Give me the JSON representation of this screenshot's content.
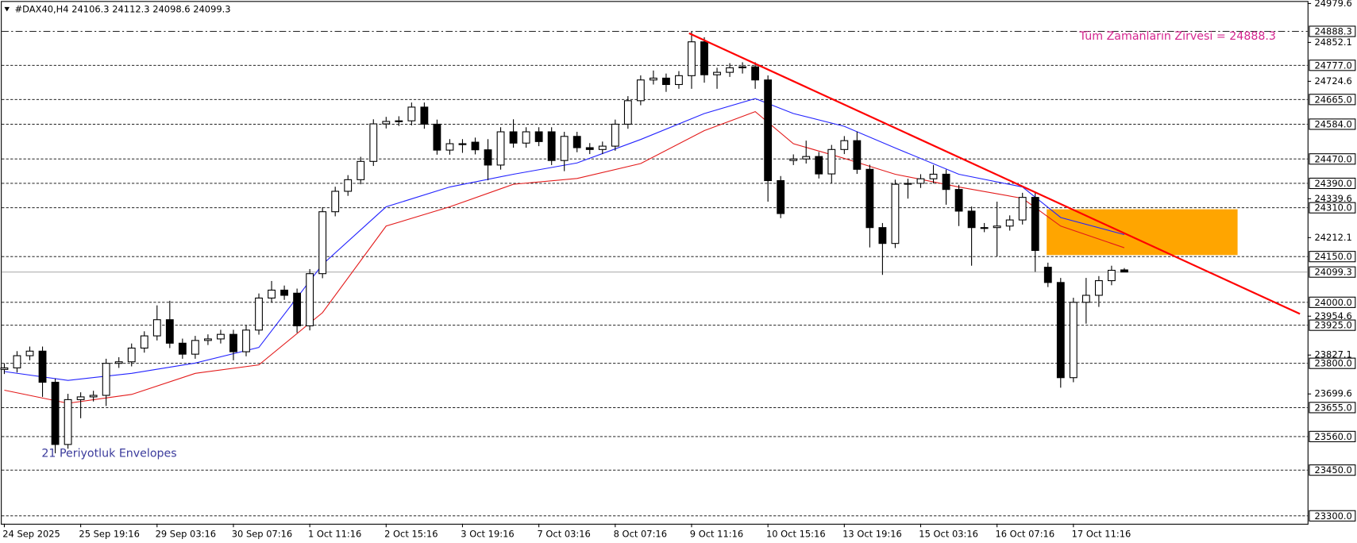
{
  "chart_data": {
    "type": "candlestick",
    "header": "#DAX40,H4  24106.3 24112.3 24098.6 24099.3",
    "annotations": [
      "Tüm Zamanların Zirvesi = 24888.3",
      "21 Periyotluk Envelopes"
    ],
    "xlim": [
      -0.34,
      102.4
    ],
    "ylim": [
      23274,
      24990.6
    ],
    "xticks": [
      {
        "value": 0,
        "label": "24 Sep 2025"
      },
      {
        "value": 6,
        "label": "25 Sep 19:16"
      },
      {
        "value": 12,
        "label": "29 Sep 03:16"
      },
      {
        "value": 18,
        "label": "30 Sep 07:16"
      },
      {
        "value": 24,
        "label": "1 Oct 11:16"
      },
      {
        "value": 30,
        "label": "2 Oct 15:16"
      },
      {
        "value": 36,
        "label": "3 Oct 19:16"
      },
      {
        "value": 42,
        "label": "7 Oct 03:16"
      },
      {
        "value": 48,
        "label": "8 Oct 07:16"
      },
      {
        "value": 54,
        "label": "9 Oct 11:16"
      },
      {
        "value": 60,
        "label": "10 Oct 15:16"
      },
      {
        "value": 66,
        "label": "13 Oct 19:16"
      },
      {
        "value": 72,
        "label": "15 Oct 03:16"
      },
      {
        "value": 78,
        "label": "16 Oct 07:16"
      },
      {
        "value": 84,
        "label": "17 Oct 11:16"
      }
    ],
    "yticks": [
      24979.6,
      24852.1,
      24724.6,
      24339.6,
      24212.1,
      23954.6,
      23827.1,
      23699.6
    ],
    "levels": [
      24888.3,
      {
        "value": 24777,
        "label": "24777.0"
      },
      {
        "value": 24665,
        "label": "24665.0"
      },
      {
        "value": 24584,
        "label": "24584.0"
      },
      {
        "value": 24470,
        "label": "24470.0"
      },
      {
        "value": 24390,
        "label": "24390.0"
      },
      {
        "value": 24310,
        "label": "24310.0"
      },
      {
        "value": 24150,
        "label": "24150.0"
      },
      {
        "value": 24000,
        "label": "24000.0"
      },
      {
        "value": 23925,
        "label": "23925.0"
      },
      {
        "value": 23800,
        "label": "23800.0"
      },
      {
        "value": 23655,
        "label": "23655.0"
      },
      {
        "value": 23560,
        "label": "23560.0"
      },
      {
        "value": 23450,
        "label": "23450.0"
      },
      {
        "value": 23300,
        "label": "23300.0"
      }
    ],
    "price_line": 24099.3,
    "open": [
      23780,
      23785,
      23825,
      23840,
      23738,
      23534,
      23681,
      23690,
      23695,
      23800,
      23805,
      23850,
      23890,
      23943,
      23866,
      23830,
      23875,
      23880,
      23895,
      23838,
      23909,
      24014,
      24040,
      24030,
      23923,
      24094,
      24297,
      24364,
      24402,
      24462,
      24585,
      24593,
      24595,
      24640,
      24584,
      24499,
      24520,
      24525,
      24500,
      24450,
      24559,
      24522,
      24559,
      24559,
      24465,
      24544,
      24507,
      24501,
      24512,
      24584,
      24661,
      24729,
      24735,
      24714,
      24743,
      24854,
      24746,
      24754,
      24769,
      24772,
      24729,
      24399,
      24465,
      24470,
      24478,
      24421,
      24501,
      24530,
      24436,
      24245,
      24193,
      24387,
      24390,
      24405,
      24420,
      24370,
      24299,
      24245,
      24245,
      24250,
      24270,
      24344,
      24115,
      24065,
      23753,
      24000,
      24023,
      24071,
      24106.3
    ],
    "high": [
      23800,
      23840,
      23855,
      23855,
      23750,
      23700,
      23705,
      23710,
      23815,
      23820,
      23865,
      23905,
      23990,
      24005,
      23881,
      23890,
      23895,
      23910,
      23910,
      23924,
      24029,
      24070,
      24055,
      24045,
      24109,
      24312,
      24379,
      24417,
      24477,
      24600,
      24608,
      24610,
      24655,
      24655,
      24599,
      24535,
      24535,
      24540,
      24535,
      24574,
      24600,
      24574,
      24574,
      24574,
      24559,
      24559,
      24522,
      24527,
      24599,
      24676,
      24744,
      24760,
      24750,
      24758,
      24888.3,
      24869,
      24769,
      24784,
      24787,
      24787,
      24744,
      24414,
      24485,
      24530,
      24493,
      24516,
      24545,
      24560,
      24451,
      24260,
      24402,
      24405,
      24420,
      24450,
      24435,
      24385,
      24314,
      24260,
      24330,
      24285,
      24359,
      24359,
      24130,
      24080,
      24015,
      24080,
      24086,
      24120,
      24112.3
    ],
    "low": [
      23765,
      23770,
      23810,
      23690,
      23505,
      23520,
      23620,
      23675,
      23660,
      23785,
      23790,
      23835,
      23875,
      23850,
      23815,
      23815,
      23860,
      23865,
      23810,
      23823,
      23894,
      23999,
      24008,
      23900,
      23908,
      24079,
      24282,
      24349,
      24387,
      24447,
      24570,
      24578,
      24580,
      24569,
      24484,
      24484,
      24490,
      24485,
      24400,
      24435,
      24507,
      24507,
      24512,
      24450,
      24430,
      24492,
      24486,
      24486,
      24497,
      24569,
      24646,
      24714,
      24690,
      24700,
      24700,
      24720,
      24700,
      24739,
      24750,
      24700,
      24330,
      24276,
      24450,
      24455,
      24406,
      24390,
      24486,
      24421,
      24180,
      24090,
      24178,
      24340,
      24375,
      24390,
      24320,
      24250,
      24120,
      24230,
      24150,
      24235,
      24255,
      24100,
      24050,
      23720,
      23738,
      23930,
      23985,
      24056,
      24098.6
    ],
    "close": [
      23785,
      23825,
      23840,
      23738,
      23534,
      23681,
      23690,
      23695,
      23800,
      23805,
      23850,
      23890,
      23943,
      23866,
      23830,
      23875,
      23880,
      23895,
      23838,
      23909,
      24014,
      24040,
      24023,
      23923,
      24094,
      24297,
      24364,
      24402,
      24462,
      24585,
      24593,
      24595,
      24640,
      24584,
      24499,
      24520,
      24517,
      24500,
      24450,
      24559,
      24522,
      24559,
      24527,
      24465,
      24544,
      24507,
      24501,
      24512,
      24584,
      24661,
      24729,
      24735,
      24714,
      24743,
      24854,
      24746,
      24754,
      24769,
      24772,
      24729,
      24399,
      24291,
      24470,
      24478,
      24421,
      24501,
      24530,
      24436,
      24245,
      24193,
      24387,
      24390,
      24405,
      24420,
      24370,
      24299,
      24245,
      24245,
      24250,
      24270,
      24344,
      24170,
      24065,
      23753,
      24000,
      24023,
      24071,
      24105,
      24099.3
    ],
    "envelopes": [
      {
        "color": "#2323ff",
        "x": [
          0,
          5,
          10,
          15,
          20,
          25,
          30,
          35,
          40,
          45,
          50,
          55,
          59,
          62,
          66,
          70,
          75,
          80,
          83,
          88
        ],
        "values": [
          23773,
          23744,
          23767,
          23801,
          23852,
          24124,
          24313,
          24378,
          24420,
          24457,
          24534,
          24619,
          24668,
          24619,
          24577,
          24506,
          24420,
          24378,
          24278,
          24222
        ]
      },
      {
        "color": "#e31a1a",
        "x": [
          0,
          5,
          10,
          15,
          20,
          25,
          30,
          35,
          40,
          45,
          50,
          55,
          59,
          62,
          66,
          70,
          75,
          80,
          83,
          88
        ],
        "values": [
          23712,
          23669,
          23698,
          23767,
          23795,
          23966,
          24250,
          24313,
          24387,
          24406,
          24455,
          24563,
          24625,
          24520,
          24472,
          24420,
          24378,
          24341,
          24250,
          24179
        ]
      }
    ],
    "trendline": {
      "color": "#ff0000",
      "x": [
        53.8,
        101.8
      ],
      "y": [
        24882,
        23962
      ]
    },
    "zone": {
      "color": "#ffa500",
      "x": [
        81.9,
        96.9
      ],
      "y": [
        24155,
        24305
      ]
    }
  }
}
